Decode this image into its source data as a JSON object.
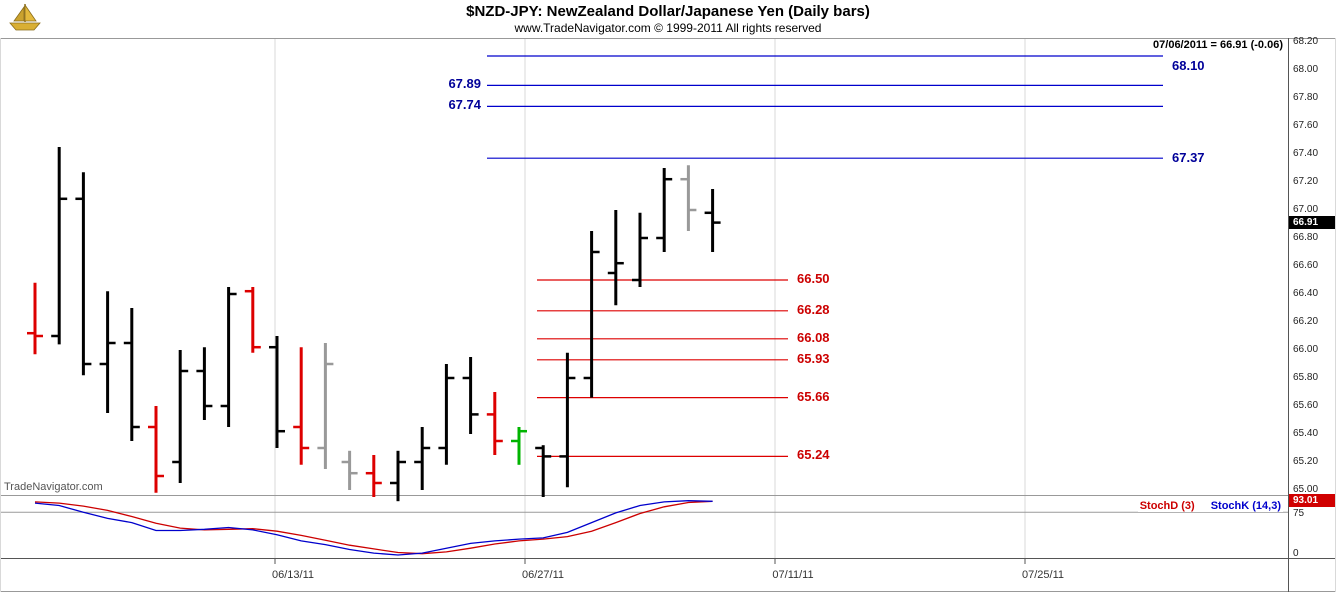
{
  "header": {
    "title": "$NZD-JPY:  NewZealand Dollar/Japanese Yen  (Daily bars)",
    "copyright": "www.TradeNavigator.com © 1999-2011 All rights reserved",
    "quote_info": "07/06/2011 = 66.91 (-0.06)"
  },
  "watermark": "TradeNavigator.com",
  "colors": {
    "resistance": "#0000cc",
    "support": "#dd0000",
    "grid": "#d9d9d9",
    "frame": "#999999",
    "frame_dark": "#555555",
    "bar_black": "#000000",
    "bar_red": "#dd0000",
    "bar_gray": "#999999",
    "bar_green": "#00b400",
    "stoch_k": "#0000cc",
    "stoch_d": "#cc0000"
  },
  "chart_data": {
    "type": "bar",
    "subtype": "ohlc-daily-bars",
    "symbol": "$NZD-JPY",
    "period": "Daily",
    "title": "$NZD-JPY:  NewZealand Dollar/Japanese Yen  (Daily bars)",
    "last_quote": {
      "date": "07/06/2011",
      "close": 66.91,
      "change": -0.06
    },
    "ylim": [
      64.95,
      68.25
    ],
    "price_axis_ticks": [
      "68.20",
      "68.00",
      "67.80",
      "67.60",
      "67.40",
      "67.20",
      "67.00",
      "66.80",
      "66.60",
      "66.40",
      "66.20",
      "66.00",
      "65.80",
      "65.60",
      "65.40",
      "65.20",
      "65.00"
    ],
    "x_axis_labels": [
      "06/13/11",
      "06/27/11",
      "07/11/11",
      "07/25/11"
    ],
    "bars": [
      {
        "o": 66.12,
        "h": 66.48,
        "l": 65.97,
        "c": 66.1,
        "color": "red"
      },
      {
        "o": 66.1,
        "h": 67.45,
        "l": 66.04,
        "c": 67.08,
        "color": "black"
      },
      {
        "o": 67.08,
        "h": 67.27,
        "l": 65.82,
        "c": 65.9,
        "color": "black"
      },
      {
        "o": 65.9,
        "h": 66.42,
        "l": 65.55,
        "c": 66.05,
        "color": "black"
      },
      {
        "o": 66.05,
        "h": 66.3,
        "l": 65.35,
        "c": 65.45,
        "color": "black"
      },
      {
        "o": 65.45,
        "h": 65.6,
        "l": 64.98,
        "c": 65.1,
        "color": "red"
      },
      {
        "o": 65.2,
        "h": 66.0,
        "l": 65.05,
        "c": 65.85,
        "color": "black"
      },
      {
        "o": 65.85,
        "h": 66.02,
        "l": 65.5,
        "c": 65.6,
        "color": "black"
      },
      {
        "o": 65.6,
        "h": 66.45,
        "l": 65.45,
        "c": 66.4,
        "color": "black"
      },
      {
        "o": 66.42,
        "h": 66.45,
        "l": 65.98,
        "c": 66.02,
        "color": "red"
      },
      {
        "o": 66.02,
        "h": 66.1,
        "l": 65.3,
        "c": 65.42,
        "color": "black"
      },
      {
        "o": 65.45,
        "h": 66.02,
        "l": 65.18,
        "c": 65.3,
        "color": "red"
      },
      {
        "o": 65.3,
        "h": 66.05,
        "l": 65.15,
        "c": 65.9,
        "color": "gray"
      },
      {
        "o": 65.2,
        "h": 65.28,
        "l": 65.0,
        "c": 65.12,
        "color": "gray"
      },
      {
        "o": 65.12,
        "h": 65.25,
        "l": 64.95,
        "c": 65.05,
        "color": "red"
      },
      {
        "o": 65.05,
        "h": 65.28,
        "l": 64.92,
        "c": 65.2,
        "color": "black"
      },
      {
        "o": 65.2,
        "h": 65.45,
        "l": 65.0,
        "c": 65.3,
        "color": "black"
      },
      {
        "o": 65.3,
        "h": 65.9,
        "l": 65.18,
        "c": 65.8,
        "color": "black"
      },
      {
        "o": 65.8,
        "h": 65.95,
        "l": 65.4,
        "c": 65.54,
        "color": "black"
      },
      {
        "o": 65.54,
        "h": 65.7,
        "l": 65.25,
        "c": 65.35,
        "color": "red"
      },
      {
        "o": 65.35,
        "h": 65.45,
        "l": 65.18,
        "c": 65.42,
        "color": "green"
      },
      {
        "o": 65.3,
        "h": 65.32,
        "l": 64.95,
        "c": 65.24,
        "color": "black"
      },
      {
        "o": 65.24,
        "h": 65.98,
        "l": 65.02,
        "c": 65.8,
        "color": "black"
      },
      {
        "o": 65.8,
        "h": 66.85,
        "l": 65.66,
        "c": 66.7,
        "color": "black"
      },
      {
        "o": 66.55,
        "h": 67.0,
        "l": 66.32,
        "c": 66.62,
        "color": "black"
      },
      {
        "o": 66.5,
        "h": 66.98,
        "l": 66.45,
        "c": 66.8,
        "color": "black"
      },
      {
        "o": 66.8,
        "h": 67.3,
        "l": 66.7,
        "c": 67.22,
        "color": "black"
      },
      {
        "o": 67.22,
        "h": 67.32,
        "l": 66.85,
        "c": 67.0,
        "color": "gray"
      },
      {
        "o": 66.98,
        "h": 67.15,
        "l": 66.7,
        "c": 66.91,
        "color": "black"
      }
    ],
    "resistance_lines": [
      {
        "price": 68.1,
        "label": "68.10",
        "label_pos": "below-right"
      },
      {
        "price": 67.89,
        "label": "67.89",
        "label_pos": "left"
      },
      {
        "price": 67.74,
        "label": "67.74",
        "label_pos": "left"
      },
      {
        "price": 67.37,
        "label": "67.37",
        "label_pos": "right"
      }
    ],
    "support_lines": [
      {
        "price": 66.5,
        "label": "66.50"
      },
      {
        "price": 66.28,
        "label": "66.28"
      },
      {
        "price": 66.08,
        "label": "66.08"
      },
      {
        "price": 65.93,
        "label": "65.93"
      },
      {
        "price": 65.66,
        "label": "65.66"
      },
      {
        "price": 65.24,
        "label": "65.24"
      }
    ],
    "stochastic": {
      "d_label": "StochD (3)",
      "k_label": "StochK (14,3)",
      "overbought_level": 75,
      "axis_ticks": [
        "75",
        "0"
      ],
      "k": [
        90,
        86,
        75,
        65,
        58,
        45,
        45,
        47,
        50,
        46,
        38,
        28,
        22,
        14,
        8,
        5,
        8,
        16,
        24,
        28,
        31,
        33,
        42,
        58,
        74,
        86,
        92,
        94,
        93
      ],
      "d": [
        92,
        90,
        85,
        78,
        68,
        57,
        49,
        46,
        47,
        48,
        44,
        37,
        29,
        21,
        15,
        9,
        7,
        10,
        16,
        23,
        28,
        31,
        35,
        44,
        58,
        73,
        84,
        91,
        93
      ]
    },
    "badges": {
      "last_price": "66.91",
      "stoch_value": "93.01"
    }
  }
}
